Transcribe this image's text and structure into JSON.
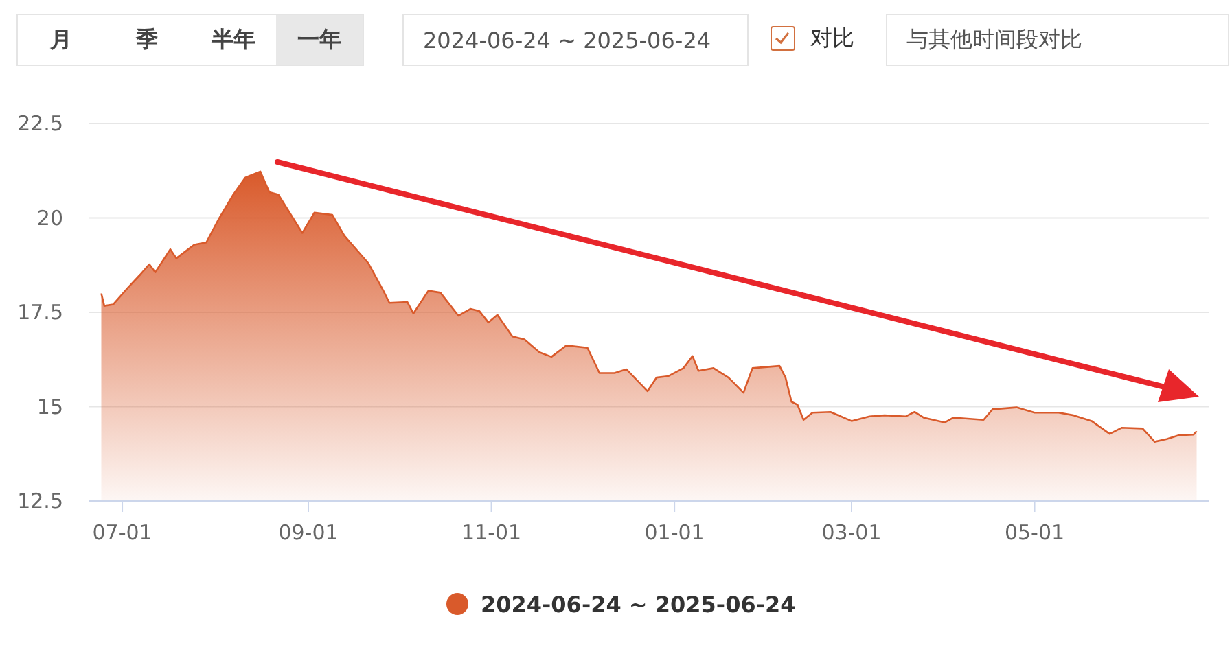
{
  "chart_data": {
    "type": "area",
    "annotations": [
      "月",
      "季",
      "半年",
      "一年",
      "2024-06-24 ~ 2025-06-24",
      "对比",
      "与其他时间段对比"
    ],
    "x": [
      "2024-06-24",
      "2024-06-25",
      "2024-06-28",
      "2024-07-03",
      "2024-07-07",
      "2024-07-10",
      "2024-07-12",
      "2024-07-17",
      "2024-07-19",
      "2024-07-23",
      "2024-07-25",
      "2024-07-29",
      "2024-08-02",
      "2024-08-07",
      "2024-08-11",
      "2024-08-16",
      "2024-08-19",
      "2024-08-22",
      "2024-08-30",
      "2024-09-03",
      "2024-09-09",
      "2024-09-13",
      "2024-09-21",
      "2024-09-26",
      "2024-09-28",
      "2024-10-04",
      "2024-10-06",
      "2024-10-11",
      "2024-10-15",
      "2024-10-21",
      "2024-10-25",
      "2024-10-28",
      "2024-10-31",
      "2024-11-03",
      "2024-11-08",
      "2024-11-12",
      "2024-11-17",
      "2024-11-21",
      "2024-11-26",
      "2024-12-03",
      "2024-12-07",
      "2024-12-12",
      "2024-12-16",
      "2024-12-23",
      "2024-12-26",
      "2024-12-30",
      "2025-01-04",
      "2025-01-07",
      "2025-01-09",
      "2025-01-14",
      "2025-01-19",
      "2025-01-24",
      "2025-01-27",
      "2025-02-05",
      "2025-02-07",
      "2025-02-09",
      "2025-02-11",
      "2025-02-13",
      "2025-02-16",
      "2025-02-22",
      "2025-03-01",
      "2025-03-07",
      "2025-03-12",
      "2025-03-19",
      "2025-03-22",
      "2025-03-25",
      "2025-04-01",
      "2025-04-04",
      "2025-04-14",
      "2025-04-17",
      "2025-04-25",
      "2025-05-01",
      "2025-05-09",
      "2025-05-14",
      "2025-05-20",
      "2025-05-26",
      "2025-05-30",
      "2025-06-06",
      "2025-06-10",
      "2025-06-14",
      "2025-06-18",
      "2025-06-23",
      "2025-06-24"
    ],
    "series": [
      {
        "name": "2024-06-24 ~ 2025-06-24",
        "color": "#d95a2b",
        "values": [
          18.0,
          17.67,
          17.71,
          18.16,
          18.5,
          18.77,
          18.56,
          19.17,
          18.93,
          19.17,
          19.29,
          19.35,
          19.95,
          20.62,
          21.07,
          21.23,
          20.68,
          20.62,
          19.6,
          20.14,
          20.08,
          19.53,
          18.8,
          18.07,
          17.75,
          17.77,
          17.47,
          18.07,
          18.02,
          17.41,
          17.59,
          17.53,
          17.23,
          17.43,
          16.86,
          16.78,
          16.44,
          16.32,
          16.62,
          16.56,
          15.89,
          15.89,
          15.99,
          15.41,
          15.77,
          15.81,
          16.02,
          16.34,
          15.95,
          16.02,
          15.77,
          15.37,
          16.02,
          16.08,
          15.77,
          15.13,
          15.05,
          14.65,
          14.84,
          14.86,
          14.62,
          14.74,
          14.77,
          14.74,
          14.86,
          14.71,
          14.58,
          14.71,
          14.65,
          14.93,
          14.98,
          14.84,
          14.84,
          14.77,
          14.62,
          14.28,
          14.44,
          14.42,
          14.07,
          14.14,
          14.24,
          14.26,
          14.35
        ]
      }
    ],
    "xlim": [
      "2024-06-20",
      "2025-06-28"
    ],
    "xticks": [
      {
        "value": "2024-07-01",
        "label": "07-01"
      },
      {
        "value": "2024-09-01",
        "label": "09-01"
      },
      {
        "value": "2024-11-01",
        "label": "11-01"
      },
      {
        "value": "2025-01-01",
        "label": "01-01"
      },
      {
        "value": "2025-03-01",
        "label": "03-01"
      },
      {
        "value": "2025-05-01",
        "label": "05-01"
      }
    ],
    "ylim": [
      12.5,
      22.5
    ],
    "yticks": [
      12.5,
      15,
      17.5,
      20,
      22.5
    ],
    "grid": "y",
    "legend": "bottom"
  }
}
